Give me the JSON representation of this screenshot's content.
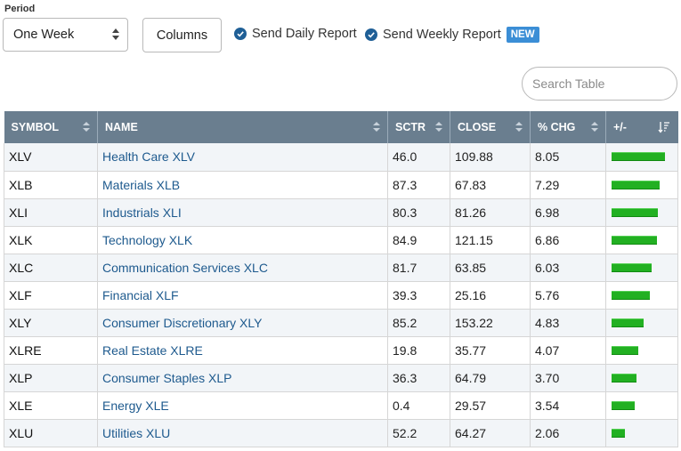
{
  "period": {
    "label": "Period",
    "selected": "One Week"
  },
  "toolbar": {
    "columns_label": "Columns",
    "daily_report_label": "Send Daily Report",
    "weekly_report_label": "Send Weekly Report",
    "new_badge": "NEW"
  },
  "search": {
    "placeholder": "Search Table"
  },
  "table": {
    "headers": {
      "symbol": "SYMBOL",
      "name": "NAME",
      "sctr": "SCTR",
      "close": "CLOSE",
      "pct_chg": "% CHG",
      "plus_minus": "+/-"
    },
    "bar_max_pct": 8.05,
    "bar_color": "#22b022",
    "header_color": "#6a7e8f",
    "link_color": "#1e5a8e",
    "rows": [
      {
        "symbol": "XLV",
        "name": "Health Care XLV",
        "sctr": "46.0",
        "close": "109.88",
        "pct_chg": "8.05"
      },
      {
        "symbol": "XLB",
        "name": "Materials XLB",
        "sctr": "87.3",
        "close": "67.83",
        "pct_chg": "7.29"
      },
      {
        "symbol": "XLI",
        "name": "Industrials XLI",
        "sctr": "80.3",
        "close": "81.26",
        "pct_chg": "6.98"
      },
      {
        "symbol": "XLK",
        "name": "Technology XLK",
        "sctr": "84.9",
        "close": "121.15",
        "pct_chg": "6.86"
      },
      {
        "symbol": "XLC",
        "name": "Communication Services XLC",
        "sctr": "81.7",
        "close": "63.85",
        "pct_chg": "6.03"
      },
      {
        "symbol": "XLF",
        "name": "Financial XLF",
        "sctr": "39.3",
        "close": "25.16",
        "pct_chg": "5.76"
      },
      {
        "symbol": "XLY",
        "name": "Consumer Discretionary XLY",
        "sctr": "85.2",
        "close": "153.22",
        "pct_chg": "4.83"
      },
      {
        "symbol": "XLRE",
        "name": "Real Estate XLRE",
        "sctr": "19.8",
        "close": "35.77",
        "pct_chg": "4.07"
      },
      {
        "symbol": "XLP",
        "name": "Consumer Staples XLP",
        "sctr": "36.3",
        "close": "64.79",
        "pct_chg": "3.70"
      },
      {
        "symbol": "XLE",
        "name": "Energy XLE",
        "sctr": "0.4",
        "close": "29.57",
        "pct_chg": "3.54"
      },
      {
        "symbol": "XLU",
        "name": "Utilities XLU",
        "sctr": "52.2",
        "close": "64.27",
        "pct_chg": "2.06"
      }
    ]
  }
}
